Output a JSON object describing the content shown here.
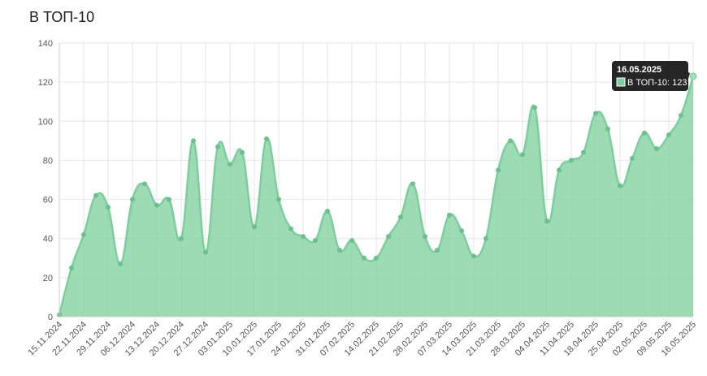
{
  "chart_data": {
    "type": "line",
    "title": "В ТОП-10",
    "categories": [
      "15.11.2024",
      null,
      "22.11.2024",
      null,
      "29.11.2024",
      null,
      "06.12.2024",
      null,
      "13.12.2024",
      null,
      "20.12.2024",
      null,
      "27.12.2024",
      null,
      "03.01.2025",
      null,
      "10.01.2025",
      null,
      "17.01.2025",
      null,
      "24.01.2025",
      null,
      "31.01.2025",
      null,
      "07.02.2025",
      null,
      "14.02.2025",
      null,
      "21.02.2025",
      null,
      "28.02.2025",
      null,
      "07.03.2025",
      null,
      "14.03.2025",
      null,
      "21.03.2025",
      null,
      "28.03.2025",
      null,
      "04.04.2025",
      null,
      "11.04.2025",
      null,
      "18.04.2025",
      null,
      "25.04.2025",
      null,
      "02.05.2025",
      null,
      "09.05.2025",
      null,
      "16.05.2025"
    ],
    "series": [
      {
        "name": "В ТОП-10",
        "color": "#7ccf9c",
        "values": [
          1,
          25,
          42,
          62,
          56,
          27,
          60,
          68,
          57,
          60,
          40,
          90,
          33,
          87,
          78,
          84,
          46,
          91,
          60,
          45,
          41,
          39,
          54,
          34,
          39,
          30,
          30,
          41,
          51,
          68,
          41,
          34,
          52,
          44,
          31,
          40,
          75,
          90,
          83,
          107,
          49,
          75,
          80,
          84,
          104,
          96,
          67,
          81,
          94,
          86,
          93,
          103,
          123
        ]
      }
    ],
    "ylim": [
      0,
      140
    ],
    "yticks": [
      0,
      20,
      40,
      60,
      80,
      100,
      120,
      140
    ],
    "grid": true,
    "tooltip": {
      "label": "В ТОП-10: 123"
    }
  }
}
